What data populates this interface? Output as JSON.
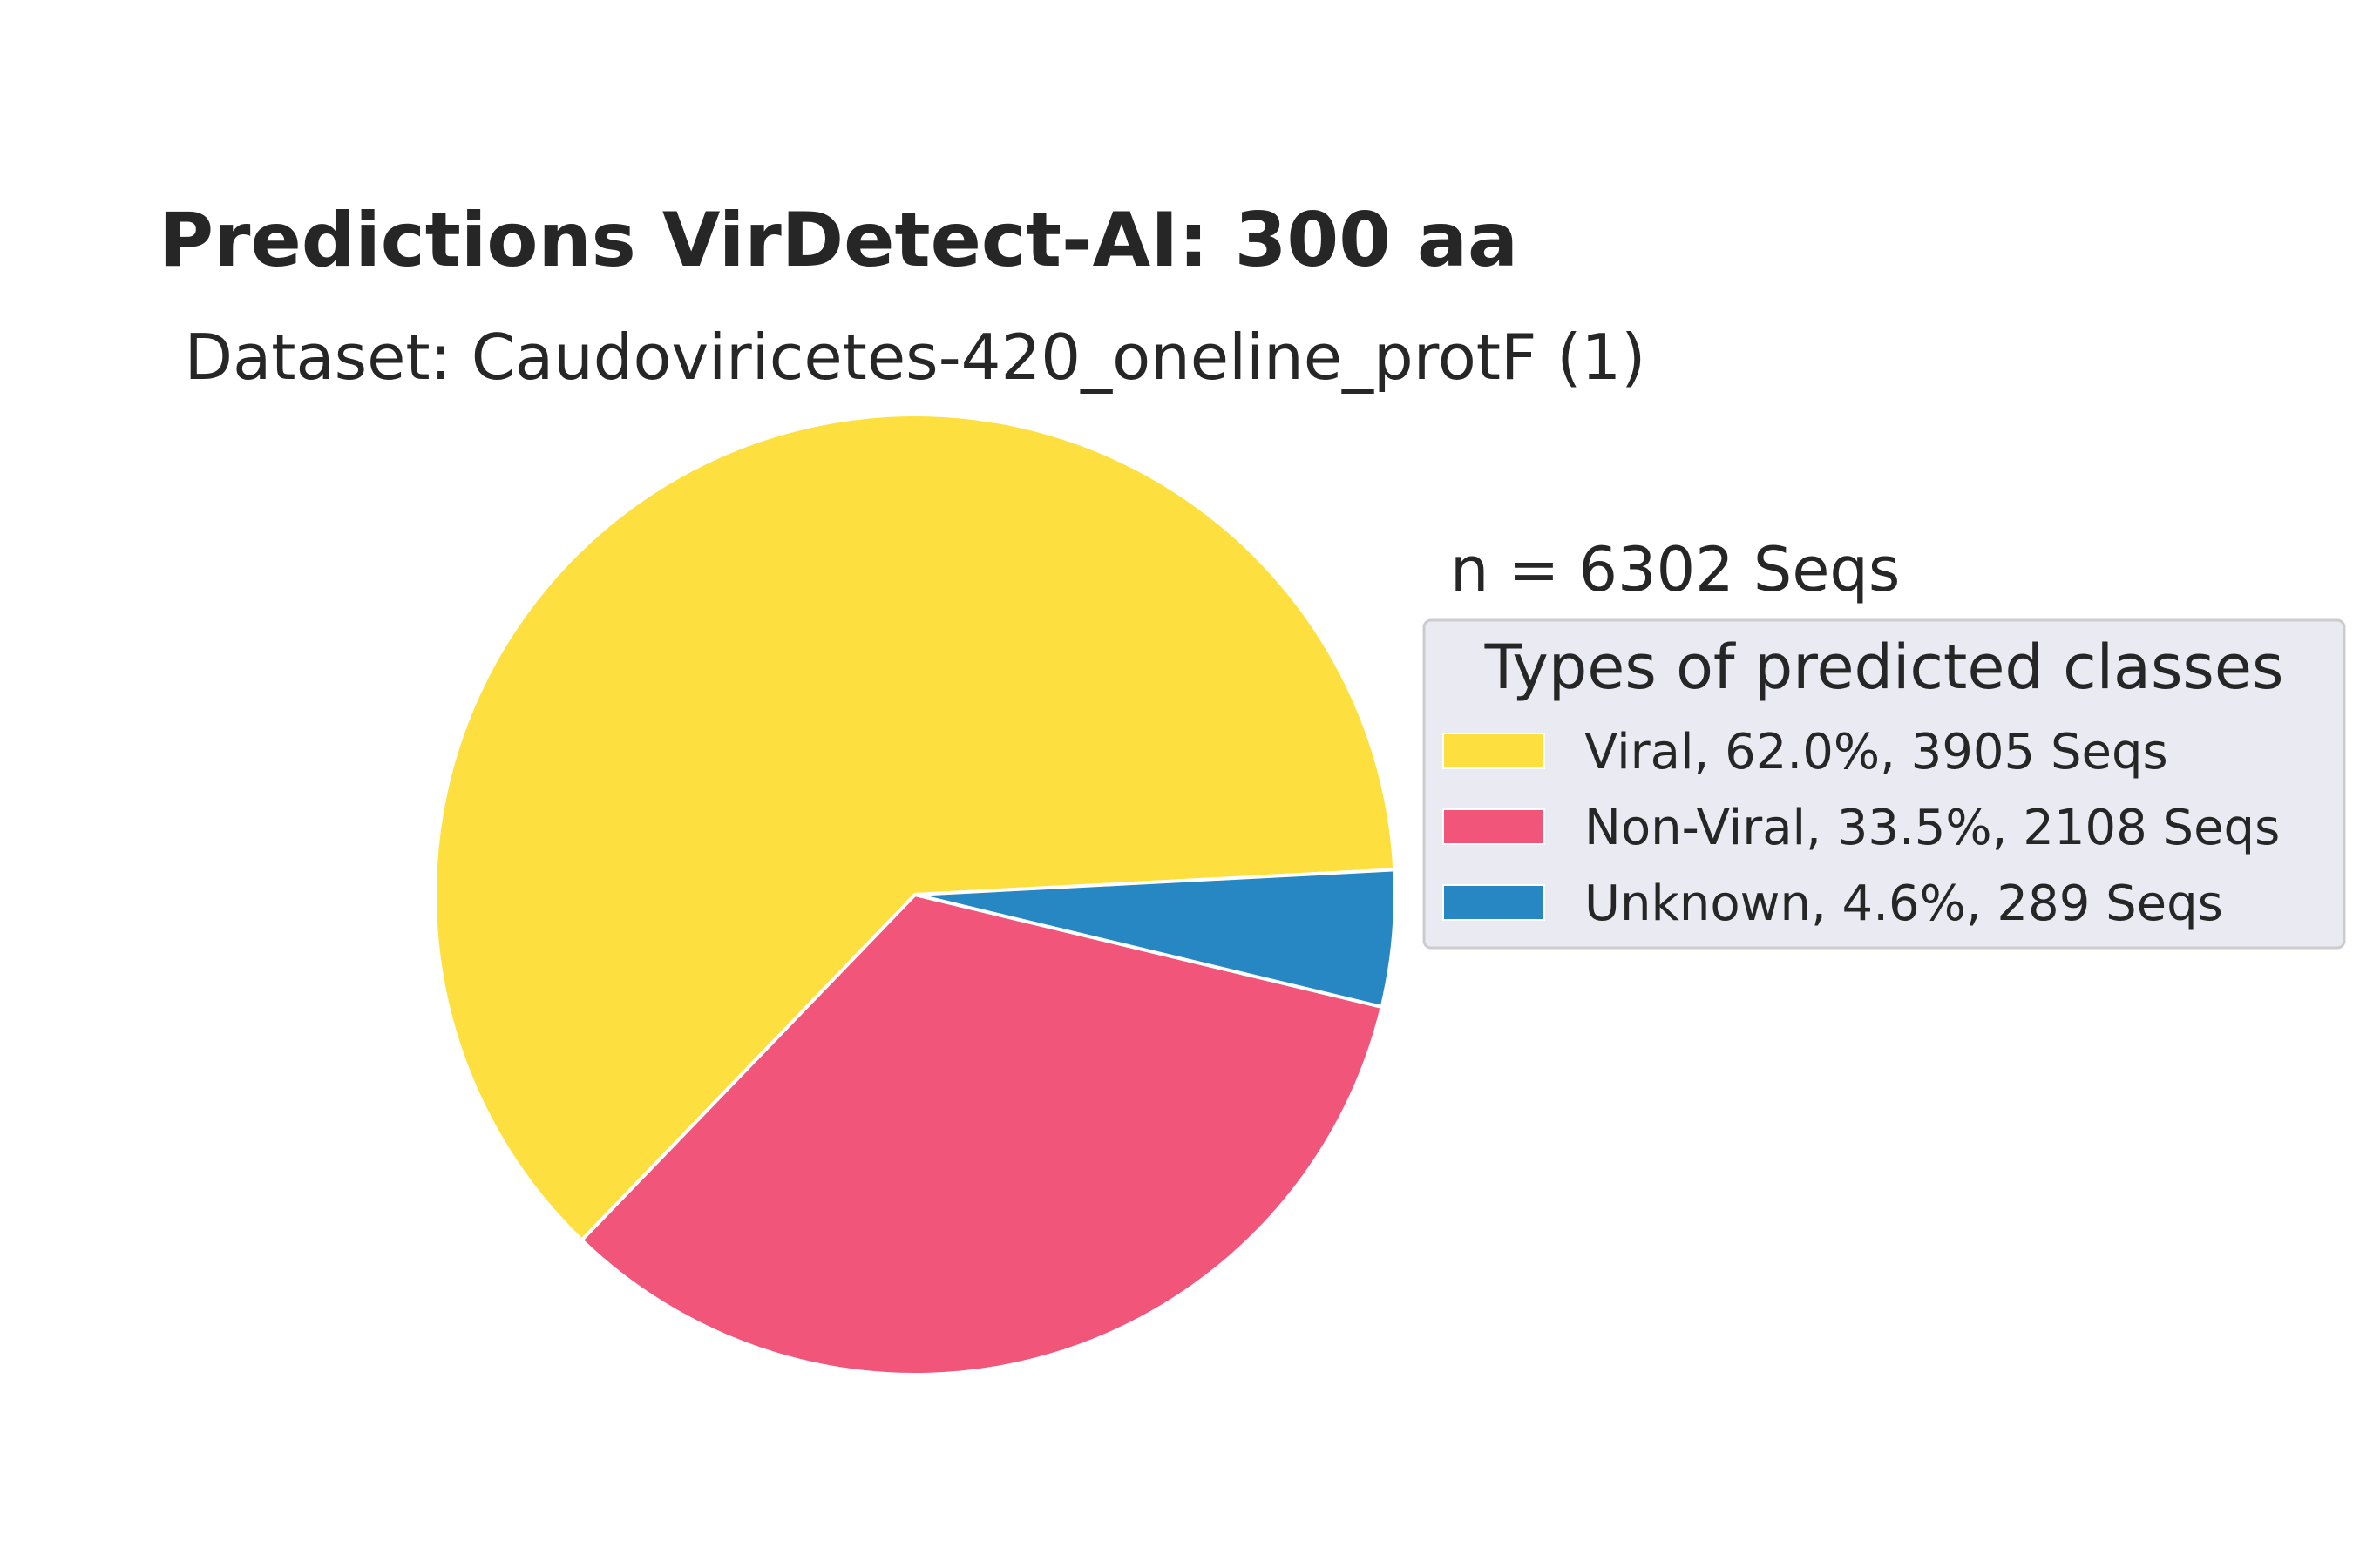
{
  "chart_data": {
    "type": "pie",
    "title": "Predictions VirDetect-AI: 300 aa",
    "subtitle": "Dataset: Caudoviricetes-420_oneline_protF (1)",
    "annotation": "n = 6302 Seqs",
    "legend_title": "Types of predicted classes",
    "legend_placement": "right",
    "slices": [
      {
        "label": "Viral",
        "value": 3905,
        "percent": 62.0,
        "color": "#FDE03F",
        "legend_text": "Viral, 62.0%, 3905 Seqs"
      },
      {
        "label": "Non-Viral",
        "value": 2108,
        "percent": 33.5,
        "color": "#F2557A",
        "legend_text": "Non-Viral, 33.5%, 2108 Seqs"
      },
      {
        "label": "Unknown",
        "value": 289,
        "percent": 4.6,
        "color": "#2787C2",
        "legend_text": "Unknown, 4.6%, 289 Seqs"
      }
    ]
  }
}
